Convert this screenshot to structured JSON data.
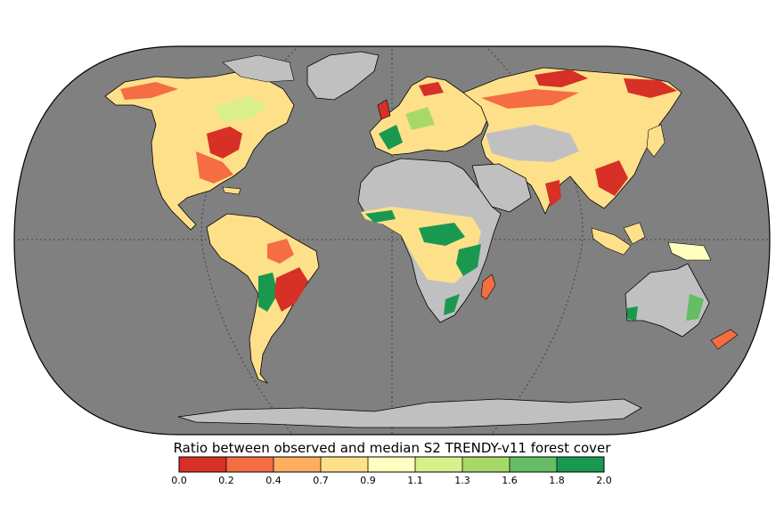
{
  "colorbar": {
    "title": "Ratio between observed and median S2 TRENDY-v11 forest cover",
    "ticks": [
      "0.0",
      "0.2",
      "0.4",
      "0.7",
      "0.9",
      "1.1",
      "1.3",
      "1.6",
      "1.8",
      "2.0"
    ],
    "colors": [
      "#d73027",
      "#f46d43",
      "#fdae61",
      "#fee08b",
      "#ffffbf",
      "#d9ef8b",
      "#a6d96a",
      "#66bd63",
      "#1a9850"
    ]
  },
  "map": {
    "projection": "Robinson",
    "ocean_color": "#808080",
    "land_color": "#c0c0c0",
    "graticule": "dotted"
  }
}
